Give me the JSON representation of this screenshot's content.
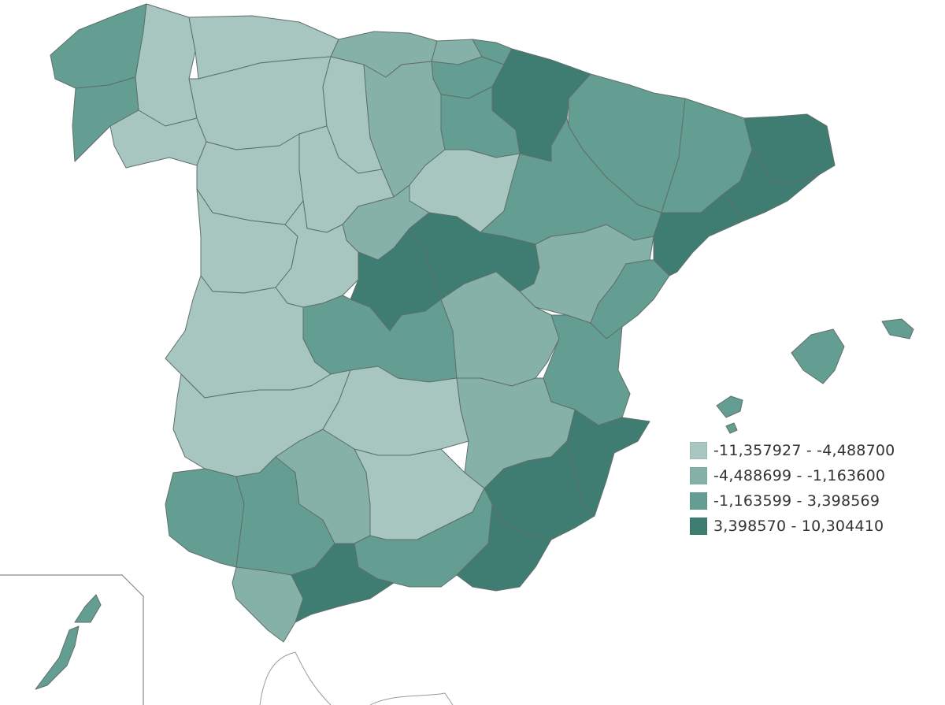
{
  "map": {
    "classes": [
      {
        "label": "-11,357927 - -4,488700",
        "color": "#a6c6bf"
      },
      {
        "label": "-4,488699 - -1,163600",
        "color": "#85b1a8"
      },
      {
        "label": "-1,163599 - 3,398569",
        "color": "#649d92"
      },
      {
        "label": "3,398570 - 10,304410",
        "color": "#3f7d73"
      }
    ]
  }
}
